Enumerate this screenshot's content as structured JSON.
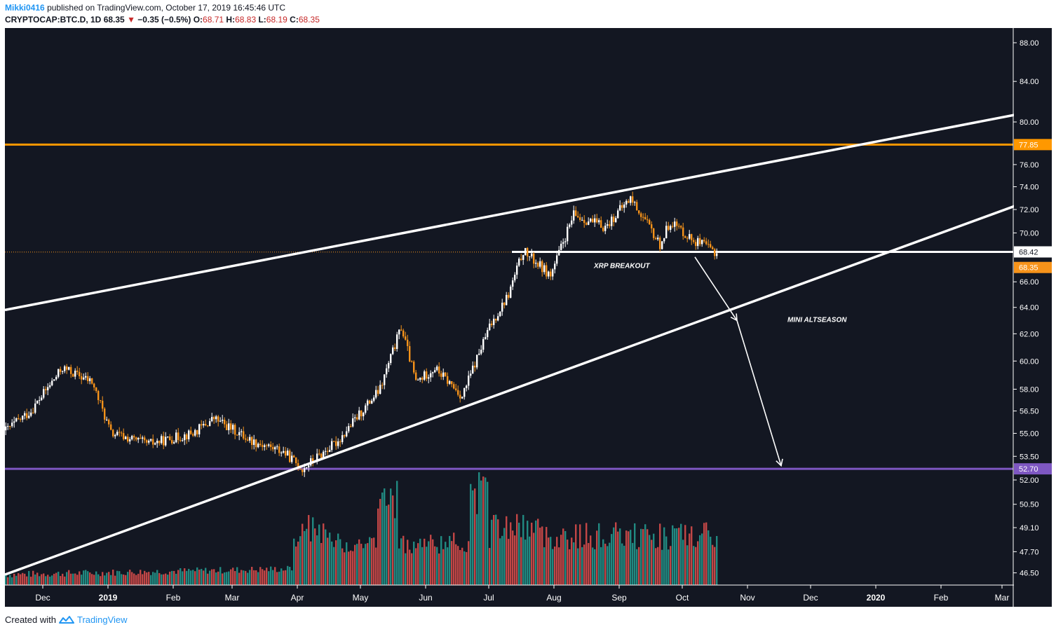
{
  "header": {
    "author": "Mikki0416",
    "published_text": "published on TradingView.com, October 17, 2019 16:45:46 UTC"
  },
  "symbol_line": {
    "symbol": "CRYPTOCAP:BTC.D, 1D",
    "last": "68.35",
    "change": "−0.35 (−0.5%)",
    "open_label": "O:",
    "open": "68.71",
    "high_label": "H:",
    "high": "68.83",
    "low_label": "L:",
    "low": "68.19",
    "close_label": "C:",
    "close": "68.35"
  },
  "footer": {
    "created_with": "Created with",
    "brand": "TradingView"
  },
  "colors": {
    "background": "#131722",
    "bull_candle": "#ffffff",
    "bear_candle": "#f7931a",
    "volume_up": "#26a69a",
    "volume_down": "#ef5350",
    "resistance": "#ff9800",
    "support": "#7e57c2",
    "trendline": "#ffffff"
  },
  "chart_data": {
    "type": "candlestick",
    "symbol": "CRYPTOCAP:BTC.D",
    "interval": "1D",
    "x_axis_labels": [
      "Dec",
      "2019",
      "Feb",
      "Mar",
      "Apr",
      "May",
      "Jun",
      "Jul",
      "Aug",
      "Sep",
      "Oct",
      "Nov",
      "Dec",
      "2020",
      "Feb",
      "Mar"
    ],
    "y_axis_scale": "log",
    "y_ticks": [
      "88.00",
      "84.00",
      "80.00",
      "76.00",
      "74.00",
      "72.00",
      "70.00",
      "66.00",
      "64.00",
      "62.00",
      "60.00",
      "58.00",
      "56.50",
      "55.00",
      "53.50",
      "52.00",
      "50.50",
      "49.10",
      "47.70",
      "46.50"
    ],
    "price_path": [
      {
        "x": "2018-11-13",
        "close": 55.2
      },
      {
        "x": "2018-11-25",
        "close": 56.5
      },
      {
        "x": "2018-12-10",
        "close": 59.5
      },
      {
        "x": "2018-12-24",
        "close": 58.5
      },
      {
        "x": "2019-01-02",
        "close": 55.0
      },
      {
        "x": "2019-01-20",
        "close": 54.3
      },
      {
        "x": "2019-02-10",
        "close": 55.0
      },
      {
        "x": "2019-02-20",
        "close": 56.0
      },
      {
        "x": "2019-03-10",
        "close": 54.5
      },
      {
        "x": "2019-03-25",
        "close": 53.8
      },
      {
        "x": "2019-04-03",
        "close": 52.7
      },
      {
        "x": "2019-04-20",
        "close": 54.5
      },
      {
        "x": "2019-05-10",
        "close": 58.0
      },
      {
        "x": "2019-05-20",
        "close": 62.5
      },
      {
        "x": "2019-05-27",
        "close": 58.5
      },
      {
        "x": "2019-06-05",
        "close": 59.5
      },
      {
        "x": "2019-06-18",
        "close": 57.5
      },
      {
        "x": "2019-07-01",
        "close": 62.5
      },
      {
        "x": "2019-07-10",
        "close": 65.0
      },
      {
        "x": "2019-07-17",
        "close": 68.5
      },
      {
        "x": "2019-07-30",
        "close": 66.5
      },
      {
        "x": "2019-08-10",
        "close": 71.5
      },
      {
        "x": "2019-08-25",
        "close": 70.5
      },
      {
        "x": "2019-09-06",
        "close": 73.0
      },
      {
        "x": "2019-09-20",
        "close": 69.0
      },
      {
        "x": "2019-09-25",
        "close": 71.0
      },
      {
        "x": "2019-10-05",
        "close": 69.5
      },
      {
        "x": "2019-10-17",
        "close": 68.35
      }
    ],
    "volume": "relative bars, mixed up/down colors",
    "horizontal_levels": [
      {
        "value": 77.85,
        "label": "77.85",
        "color": "#ff9800"
      },
      {
        "value": 52.7,
        "label": "52.70",
        "color": "#7e57c2"
      },
      {
        "value": 68.42,
        "label": "68.42",
        "color": "#ffffff"
      }
    ],
    "last_price": {
      "value": 68.35,
      "label": "68.35"
    },
    "trendlines": [
      {
        "from": {
          "x": "2018-11-13",
          "y": 63.8
        },
        "to": {
          "x": "2020-03-10",
          "y": 80.8
        }
      },
      {
        "from": {
          "x": "2018-11-13",
          "y": 46.4
        },
        "to": {
          "x": "2020-03-10",
          "y": 72.5
        }
      }
    ],
    "annotations": [
      {
        "text": "XRP BREAKOUT",
        "x": "2019-08-20",
        "y": 67.1
      },
      {
        "text": "MINI ALTSEASON",
        "x": "2019-11-20",
        "y": 62.9
      }
    ],
    "arrows": [
      {
        "from": {
          "x": "2019-10-07",
          "y": 68.0
        },
        "to": {
          "x": "2019-10-27",
          "y": 63.0
        }
      },
      {
        "from": {
          "x": "2019-10-27",
          "y": 63.0
        },
        "to": {
          "x": "2019-11-17",
          "y": 52.9
        }
      }
    ]
  }
}
